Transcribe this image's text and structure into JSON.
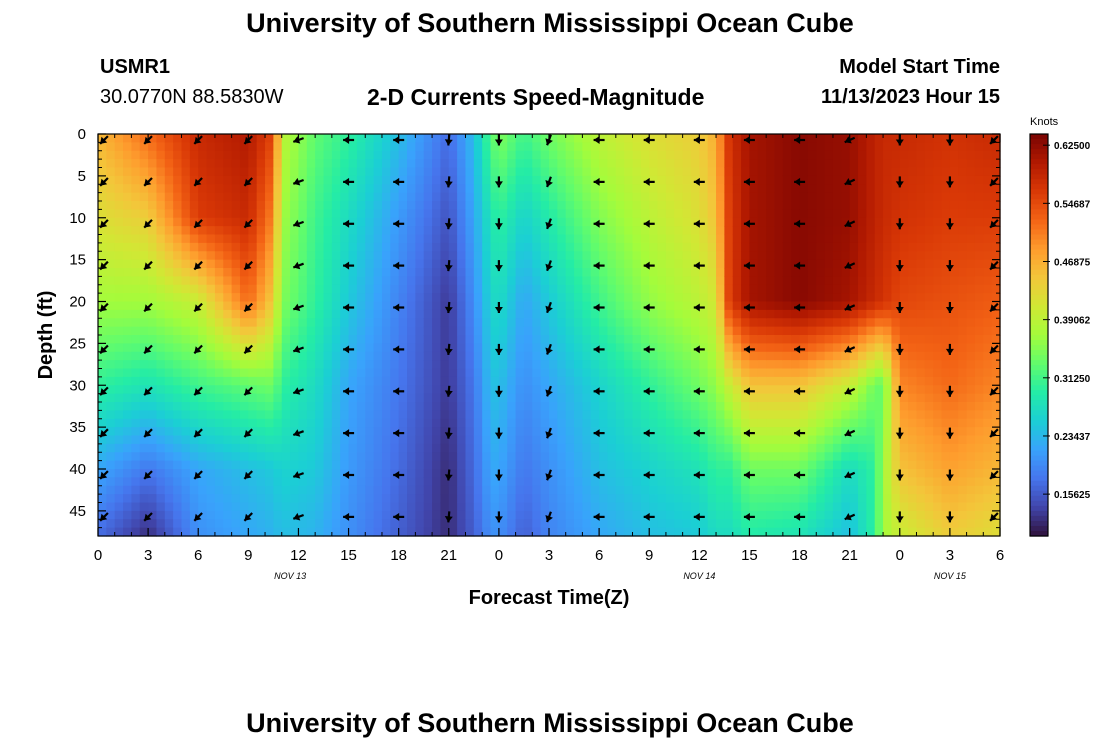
{
  "page": {
    "title": "University of Southern Mississippi Ocean Cube",
    "station_id": "USMR1",
    "station_coords": "30.0770N  88.5830W",
    "chart_heading": "2-D Currents Speed-Magnitude",
    "model_start_label": "Model Start Time",
    "model_start_value": "11/13/2023 Hour 15",
    "footer_title": "University of Southern Mississippi Ocean Cube"
  },
  "chart_data": {
    "type": "heatmap",
    "title": "2-D Currents Speed-Magnitude",
    "xlabel": "Forecast Time(Z)",
    "ylabel": "Depth (ft)",
    "x_range_hours": [
      0,
      54
    ],
    "y_range_ft": [
      0,
      48
    ],
    "x_tick_hours": [
      0,
      3,
      6,
      9,
      12,
      15,
      18,
      21,
      24,
      27,
      30,
      33,
      36,
      39,
      42,
      45,
      48,
      51,
      54
    ],
    "x_tick_labels": [
      "0",
      "3",
      "6",
      "9",
      "12",
      "15",
      "18",
      "21",
      "0",
      "3",
      "6",
      "9",
      "12",
      "15",
      "18",
      "21",
      "0",
      "3",
      "6"
    ],
    "date_labels": [
      {
        "text": "NOV 13",
        "hour": 11.5
      },
      {
        "text": "NOV 14",
        "hour": 36
      },
      {
        "text": "NOV 15",
        "hour": 51
      }
    ],
    "y_ticks": [
      0,
      5,
      10,
      15,
      20,
      25,
      30,
      35,
      40,
      45
    ],
    "y_tick_labels": [
      "0",
      "5",
      "10",
      "15",
      "20",
      "25",
      "30",
      "35",
      "40",
      "45"
    ],
    "colorbar": {
      "unit": "Knots",
      "vmin": 0.1,
      "vmax": 0.64,
      "ticks": [
        0.15625,
        0.234375,
        0.3125,
        0.390625,
        0.46875,
        0.546875,
        0.625
      ],
      "tick_labels": [
        "0.15625",
        "0.23437",
        "0.31250",
        "0.39062",
        "0.46875",
        "0.54687",
        "0.62500"
      ],
      "colors": [
        "#30123b",
        "#4145ab",
        "#4675ed",
        "#39a2fc",
        "#1bcfd4",
        "#24eca6",
        "#61fc6c",
        "#a4fc3b",
        "#d1e834",
        "#f3c63a",
        "#fe9b2d",
        "#f36315",
        "#d93806",
        "#b11901",
        "#7a0402"
      ]
    },
    "speed_keyframes": {
      "depths_ft": [
        0,
        10,
        20,
        30,
        40,
        48
      ],
      "rows": [
        {
          "hour": 0,
          "speeds": [
            0.46,
            0.42,
            0.37,
            0.3,
            0.22,
            0.17
          ]
        },
        {
          "hour": 3,
          "speeds": [
            0.52,
            0.44,
            0.37,
            0.28,
            0.18,
            0.12
          ]
        },
        {
          "hour": 6,
          "speeds": [
            0.58,
            0.56,
            0.4,
            0.31,
            0.22,
            0.2
          ]
        },
        {
          "hour": 9,
          "speeds": [
            0.6,
            0.58,
            0.52,
            0.33,
            0.24,
            0.22
          ]
        },
        {
          "hour": 10.5,
          "speeds": [
            0.55,
            0.5,
            0.44,
            0.34,
            0.25,
            0.23
          ]
        },
        {
          "hour": 11,
          "speeds": [
            0.39,
            0.37,
            0.35,
            0.3,
            0.26,
            0.24
          ]
        },
        {
          "hour": 13,
          "speeds": [
            0.33,
            0.31,
            0.3,
            0.27,
            0.25,
            0.23
          ]
        },
        {
          "hour": 15,
          "speeds": [
            0.3,
            0.27,
            0.25,
            0.22,
            0.21,
            0.2
          ]
        },
        {
          "hour": 18,
          "speeds": [
            0.24,
            0.21,
            0.19,
            0.18,
            0.17,
            0.16
          ]
        },
        {
          "hour": 21,
          "speeds": [
            0.17,
            0.15,
            0.13,
            0.13,
            0.12,
            0.12
          ]
        },
        {
          "hour": 22.5,
          "speeds": [
            0.24,
            0.22,
            0.2,
            0.18,
            0.17,
            0.16
          ]
        },
        {
          "hour": 23.5,
          "speeds": [
            0.32,
            0.28,
            0.26,
            0.24,
            0.22,
            0.2
          ]
        },
        {
          "hour": 24,
          "speeds": [
            0.35,
            0.3,
            0.27,
            0.24,
            0.22,
            0.2
          ]
        },
        {
          "hour": 25.5,
          "speeds": [
            0.31,
            0.26,
            0.22,
            0.2,
            0.18,
            0.16
          ]
        },
        {
          "hour": 27,
          "speeds": [
            0.34,
            0.29,
            0.25,
            0.22,
            0.2,
            0.19
          ]
        },
        {
          "hour": 30,
          "speeds": [
            0.39,
            0.35,
            0.31,
            0.26,
            0.24,
            0.22
          ]
        },
        {
          "hour": 33,
          "speeds": [
            0.42,
            0.39,
            0.36,
            0.3,
            0.26,
            0.24
          ]
        },
        {
          "hour": 36,
          "speeds": [
            0.44,
            0.42,
            0.39,
            0.34,
            0.28,
            0.25
          ]
        },
        {
          "hour": 37,
          "speeds": [
            0.47,
            0.45,
            0.41,
            0.36,
            0.3,
            0.27
          ]
        },
        {
          "hour": 37.8,
          "speeds": [
            0.57,
            0.56,
            0.56,
            0.4,
            0.3,
            0.27
          ]
        },
        {
          "hour": 39,
          "speeds": [
            0.61,
            0.61,
            0.61,
            0.45,
            0.34,
            0.29
          ]
        },
        {
          "hour": 42,
          "speeds": [
            0.63,
            0.63,
            0.63,
            0.45,
            0.34,
            0.28
          ]
        },
        {
          "hour": 45,
          "speeds": [
            0.62,
            0.62,
            0.61,
            0.4,
            0.27,
            0.24
          ]
        },
        {
          "hour": 46.5,
          "speeds": [
            0.59,
            0.59,
            0.58,
            0.34,
            0.3,
            0.3
          ]
        },
        {
          "hour": 47,
          "speeds": [
            0.58,
            0.58,
            0.57,
            0.33,
            0.37,
            0.37
          ]
        },
        {
          "hour": 48,
          "speeds": [
            0.58,
            0.57,
            0.55,
            0.5,
            0.45,
            0.4
          ]
        },
        {
          "hour": 51,
          "speeds": [
            0.57,
            0.56,
            0.54,
            0.52,
            0.48,
            0.44
          ]
        },
        {
          "hour": 54,
          "speeds": [
            0.58,
            0.56,
            0.53,
            0.5,
            0.46,
            0.42
          ]
        }
      ]
    },
    "vector_grid": {
      "hours": [
        0,
        3,
        6,
        9,
        12,
        15,
        18,
        21,
        24,
        27,
        30,
        33,
        36,
        39,
        42,
        45,
        48,
        51,
        54
      ],
      "depths_ft": [
        0,
        5,
        10,
        15,
        20,
        25,
        30,
        35,
        40,
        45
      ],
      "direction_deg_by_hour": [
        225,
        225,
        225,
        225,
        200,
        180,
        180,
        265,
        270,
        250,
        180,
        180,
        180,
        180,
        180,
        205,
        270,
        270,
        225
      ],
      "direction_convention": "degrees, 0=east, 90=north (flow direction)"
    }
  }
}
